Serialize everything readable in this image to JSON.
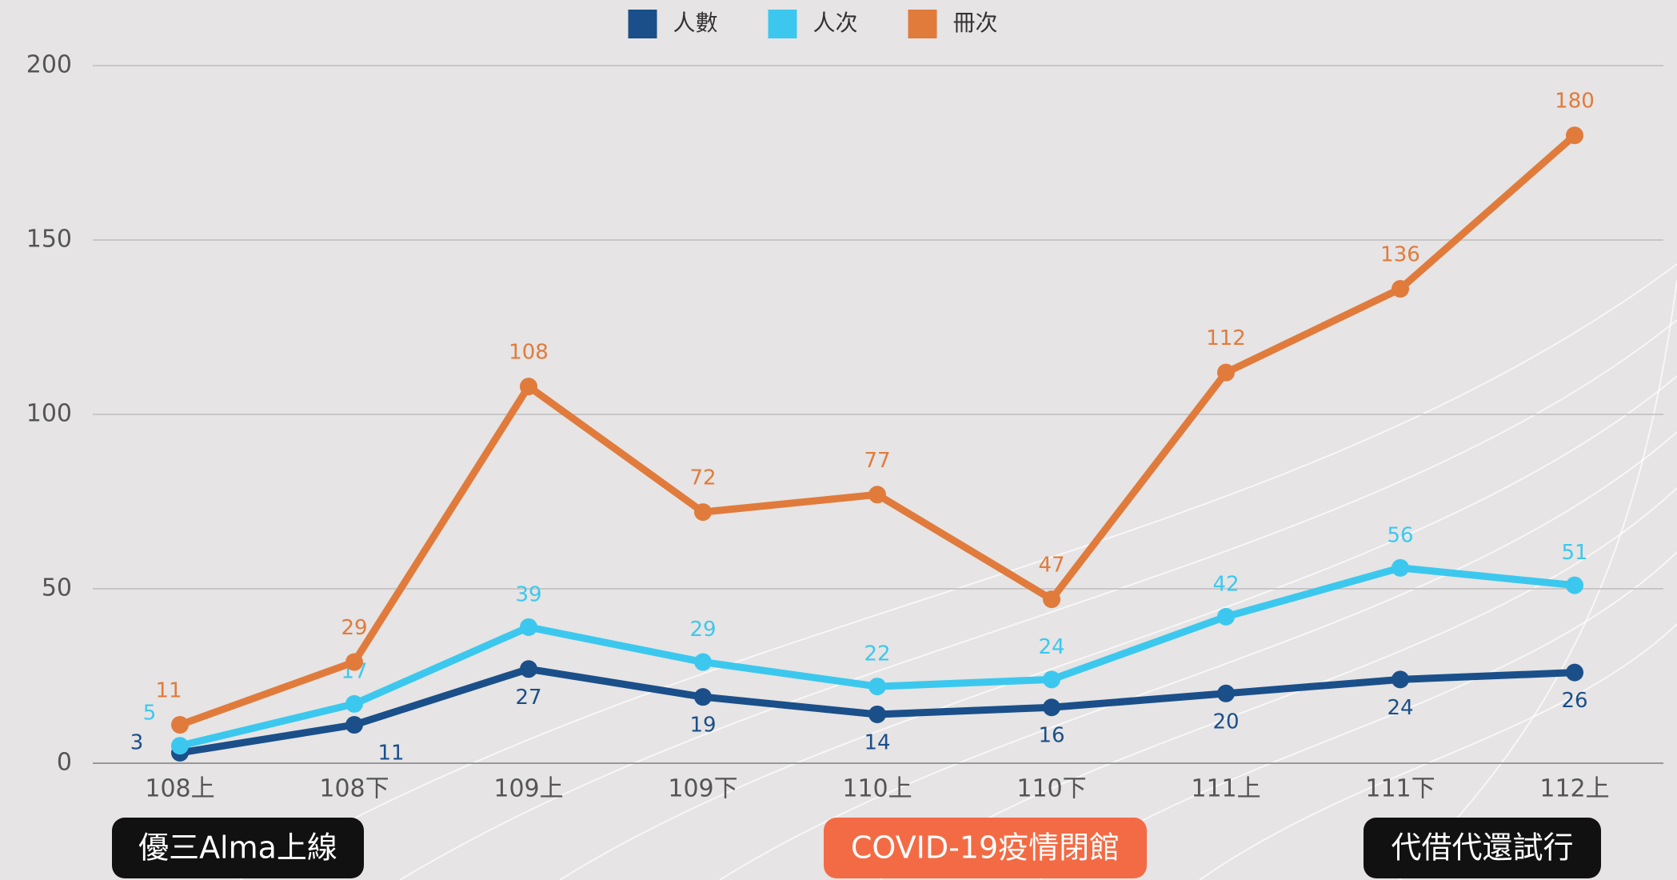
{
  "chart_data": {
    "type": "line",
    "categories": [
      "108上",
      "108下",
      "109上",
      "109下",
      "110上",
      "110下",
      "111上",
      "111下",
      "112上"
    ],
    "series": [
      {
        "name": "人數",
        "color": "#1a4f8a",
        "values": [
          3,
          11,
          27,
          19,
          14,
          16,
          20,
          24,
          26
        ]
      },
      {
        "name": "人次",
        "color": "#3cc8ee",
        "values": [
          5,
          17,
          39,
          29,
          22,
          24,
          42,
          56,
          51
        ]
      },
      {
        "name": "冊次",
        "color": "#e07b3c",
        "values": [
          11,
          29,
          108,
          72,
          77,
          47,
          112,
          136,
          180
        ]
      }
    ],
    "ylim": [
      0,
      200
    ],
    "yticks": [
      0,
      50,
      100,
      150,
      200
    ],
    "grid": true,
    "legend": "top",
    "annotations": [
      "優三Alma上線",
      "COVID-19疫情閉館",
      "代借代還試行"
    ]
  }
}
